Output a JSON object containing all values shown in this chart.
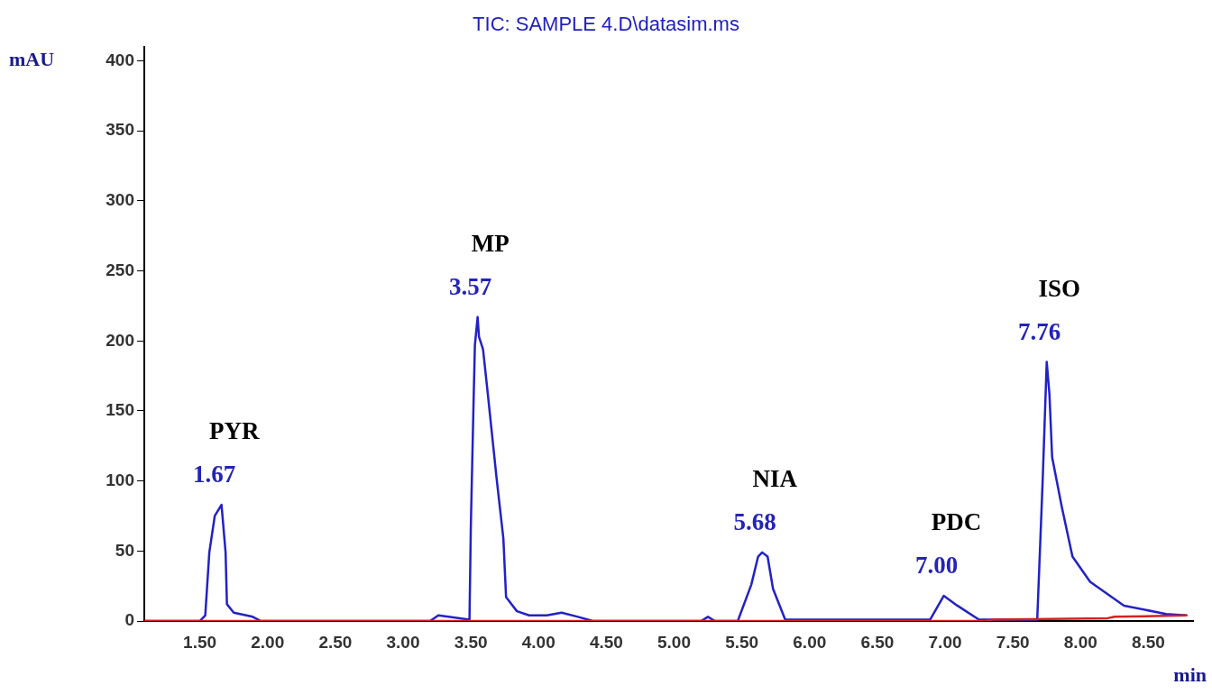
{
  "chart_data": {
    "type": "line",
    "title": "TIC: SAMPLE 4.D\\datasim.ms",
    "xlabel": "min",
    "ylabel": "mAU",
    "xlim": [
      1.09,
      8.83
    ],
    "ylim": [
      0,
      410
    ],
    "xticks": [
      {
        "value": 1.5,
        "label": "1.50"
      },
      {
        "value": 2,
        "label": "2.00"
      },
      {
        "value": 2.5,
        "label": "2.50"
      },
      {
        "value": 3,
        "label": "3.00"
      },
      {
        "value": 3.5,
        "label": "3.50"
      },
      {
        "value": 4,
        "label": "4.00"
      },
      {
        "value": 4.5,
        "label": "4.50"
      },
      {
        "value": 5,
        "label": "5.00"
      },
      {
        "value": 5.5,
        "label": "5.50"
      },
      {
        "value": 6,
        "label": "6.00"
      },
      {
        "value": 6.5,
        "label": "6.50"
      },
      {
        "value": 7,
        "label": "7.00"
      },
      {
        "value": 7.5,
        "label": "7.50"
      },
      {
        "value": 8,
        "label": "8.00"
      },
      {
        "value": 8.5,
        "label": "8.50"
      }
    ],
    "yticks": [
      0,
      50,
      100,
      150,
      200,
      250,
      300,
      350,
      400
    ],
    "grid": false,
    "legend": false,
    "marker": "none",
    "line_style": "solid",
    "series": [
      {
        "color": "#2222c4",
        "x": [
          1.09,
          1.5,
          1.54,
          1.57,
          1.61,
          1.66,
          1.69,
          1.7,
          1.75,
          1.89,
          1.95,
          3.2,
          3.26,
          3.49,
          3.5,
          3.52,
          3.53,
          3.55,
          3.56,
          3.59,
          3.62,
          3.69,
          3.74,
          3.76,
          3.84,
          3.93,
          4.06,
          4.17,
          4.29,
          4.4,
          5.2,
          5.25,
          5.3,
          5.47,
          5.57,
          5.62,
          5.65,
          5.69,
          5.73,
          5.82,
          6.89,
          6.99,
          7.09,
          7.25,
          7.68,
          7.72,
          7.75,
          7.77,
          7.79,
          7.86,
          7.94,
          8.07,
          8.32,
          8.63,
          8.78
        ],
        "values": [
          0,
          0,
          4,
          49,
          75,
          83,
          49,
          12,
          6,
          3,
          0,
          0,
          4,
          1,
          68,
          156,
          197,
          217,
          203,
          194,
          167,
          102,
          59,
          17,
          7,
          4,
          4,
          6,
          3,
          0,
          0,
          3,
          0,
          0,
          26,
          46,
          49,
          46,
          23,
          1,
          1,
          18,
          11,
          1,
          1,
          100,
          185,
          162,
          117,
          82,
          46,
          28,
          11,
          5,
          4
        ]
      },
      {
        "color": "#d42020",
        "x": [
          1.09,
          7.3,
          7.35,
          8.2,
          8.25,
          8.78
        ],
        "values": [
          0,
          0,
          1,
          2,
          3,
          4
        ]
      }
    ],
    "annotations": [
      {
        "text": "PYR",
        "x": 1.66,
        "y": 83
      },
      {
        "text": "1.67",
        "x": 1.66,
        "y": 83
      },
      {
        "text": "MP",
        "x": 3.55,
        "y": 217
      },
      {
        "text": "3.57",
        "x": 3.55,
        "y": 217
      },
      {
        "text": "NIA",
        "x": 5.65,
        "y": 49
      },
      {
        "text": "5.68",
        "x": 5.65,
        "y": 49
      },
      {
        "text": "PDC",
        "x": 6.99,
        "y": 18
      },
      {
        "text": "7.00",
        "x": 6.99,
        "y": 18
      },
      {
        "text": "ISO",
        "x": 7.75,
        "y": 185
      },
      {
        "text": "7.76",
        "x": 7.75,
        "y": 185
      }
    ]
  }
}
